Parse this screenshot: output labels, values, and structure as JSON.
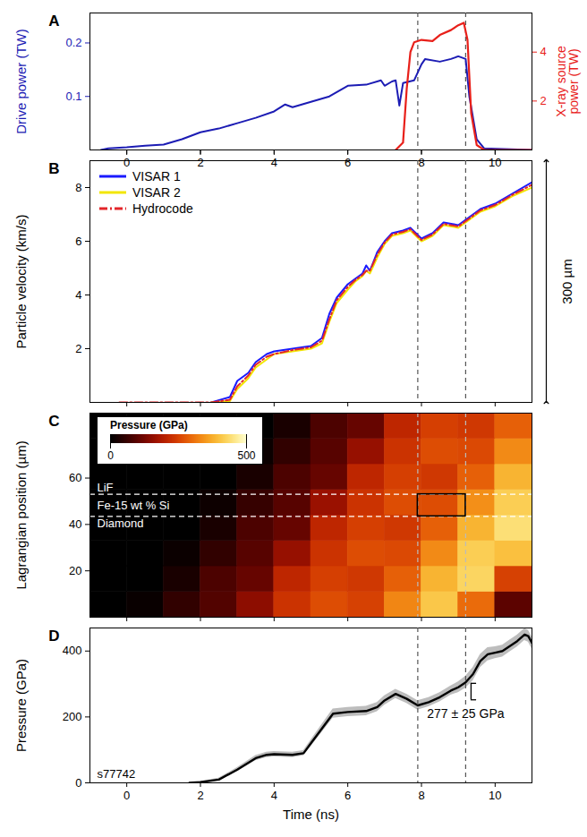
{
  "chart_data": [
    {
      "type": "line",
      "title": "A",
      "xlim": [
        -1,
        11
      ],
      "xticks": [
        0,
        2,
        4,
        6,
        8,
        10
      ],
      "tick_labels": "y",
      "ylim": [
        0,
        0.256
      ],
      "yticks": [
        0.1,
        0.2
      ],
      "y2lim": [
        0,
        5.6
      ],
      "y2ticks": [
        2,
        4
      ],
      "vlines": [
        7.9,
        9.2
      ],
      "series": [
        {
          "name": "Drive power (TW)",
          "color": "#1c1cb4",
          "line_style": "solid",
          "x": [
            -0.7,
            -0.5,
            0,
            0.5,
            1,
            1.5,
            2,
            2.5,
            3,
            3.5,
            4,
            4.3,
            4.5,
            5,
            5.5,
            6,
            6.5,
            6.9,
            7.0,
            7.2,
            7.3,
            7.4,
            7.5,
            7.8,
            8.0,
            8.1,
            8.5,
            8.8,
            9.0,
            9.2,
            9.3,
            9.5,
            9.7,
            11
          ],
          "values": [
            0,
            0.003,
            0.005,
            0.008,
            0.01,
            0.02,
            0.033,
            0.04,
            0.05,
            0.06,
            0.072,
            0.085,
            0.08,
            0.09,
            0.1,
            0.12,
            0.122,
            0.13,
            0.12,
            0.128,
            0.13,
            0.083,
            0.125,
            0.13,
            0.16,
            0.17,
            0.165,
            0.17,
            0.175,
            0.17,
            0.1,
            0.02,
            0.003,
            0
          ]
        },
        {
          "name": "X-ray source power (TW)",
          "color": "#e8201a",
          "axis": "y2",
          "line_style": "solid",
          "x": [
            7.3,
            7.5,
            7.6,
            7.7,
            7.8,
            8.0,
            8.3,
            8.5,
            8.8,
            9.0,
            9.15,
            9.25,
            9.35,
            9.5,
            9.7,
            11
          ],
          "values": [
            0,
            0.3,
            2.5,
            4.0,
            4.4,
            4.5,
            4.45,
            4.7,
            4.9,
            5.1,
            5.2,
            4.5,
            1.5,
            0.2,
            0,
            0
          ]
        }
      ]
    },
    {
      "type": "line",
      "title": "B",
      "ylabel": "Particle velocity (km/s)",
      "xlim": [
        -1,
        11
      ],
      "xticks": [
        0,
        2,
        4,
        6,
        8,
        10
      ],
      "tick_labels": "y",
      "ylim": [
        0,
        9
      ],
      "yticks": [
        2,
        4,
        6,
        8
      ],
      "vlines": [
        7.9,
        9.2
      ],
      "legend": "top-left",
      "annotations": [
        {
          "text": "300 µm"
        }
      ],
      "x": [
        -0.2,
        1,
        2.3,
        2.8,
        3.0,
        3.3,
        3.5,
        3.8,
        4.0,
        4.5,
        5.0,
        5.3,
        5.5,
        5.7,
        6.0,
        6.2,
        6.4,
        6.5,
        6.6,
        6.8,
        7.0,
        7.2,
        7.5,
        7.7,
        8.0,
        8.3,
        8.6,
        9.0,
        9.3,
        9.6,
        10.0,
        10.5,
        11.0
      ],
      "series": [
        {
          "name": "VISAR 1",
          "color": "#1a1aff",
          "line_style": "solid",
          "values": [
            null,
            null,
            0,
            0.2,
            0.8,
            1.1,
            1.5,
            1.8,
            1.9,
            2.0,
            2.1,
            2.4,
            3.3,
            3.9,
            4.4,
            4.6,
            4.8,
            5.1,
            4.9,
            5.6,
            6.0,
            6.3,
            6.4,
            6.5,
            6.1,
            6.3,
            6.7,
            6.6,
            6.9,
            7.2,
            7.4,
            7.8,
            8.2
          ]
        },
        {
          "name": "VISAR 2",
          "color": "#f2e600",
          "line_style": "solid",
          "values": [
            null,
            null,
            0,
            0.05,
            0.5,
            0.9,
            1.3,
            1.6,
            1.8,
            1.9,
            2.0,
            2.2,
            3.0,
            3.7,
            4.2,
            4.5,
            4.7,
            4.9,
            4.8,
            5.4,
            5.9,
            6.2,
            6.3,
            6.4,
            6.0,
            6.2,
            6.6,
            6.5,
            6.8,
            7.1,
            7.3,
            7.7,
            8.0
          ]
        },
        {
          "name": "Hydrocode",
          "color": "#e3262a",
          "line_style": "dashdot",
          "values": [
            0,
            0,
            0,
            0.1,
            0.6,
            1.0,
            1.4,
            1.7,
            1.8,
            1.95,
            2.05,
            2.3,
            3.1,
            3.8,
            4.3,
            4.55,
            4.75,
            4.9,
            4.9,
            5.5,
            5.95,
            6.25,
            6.35,
            6.45,
            6.05,
            6.25,
            6.65,
            6.55,
            6.85,
            7.15,
            7.35,
            7.75,
            8.1
          ]
        }
      ]
    },
    {
      "type": "heatmap",
      "title": "C",
      "ylabel": "Lagrangian position (µm)",
      "xlim": [
        -1,
        11
      ],
      "xticks": [
        0,
        2,
        4,
        6,
        8,
        10
      ],
      "tick_labels": "y",
      "ylim": [
        0,
        88
      ],
      "yticks": [
        20,
        40,
        60
      ],
      "vlines": [
        7.9,
        9.2
      ],
      "x_edges": [
        -1,
        0,
        1,
        2,
        3,
        4,
        5,
        6,
        7,
        8,
        9,
        10,
        11
      ],
      "y_edges": [
        0,
        11,
        22,
        33,
        44,
        55,
        66,
        77,
        88
      ],
      "values": [
        [
          0,
          10,
          55,
          90,
          150,
          230,
          265,
          250,
          330,
          410,
          300,
          100
        ],
        [
          0,
          0,
          28,
          83,
          110,
          210,
          248,
          237,
          288,
          385,
          430,
          250
        ],
        [
          0,
          0,
          12,
          55,
          95,
          160,
          230,
          265,
          260,
          335,
          420,
          400
        ],
        [
          0,
          0,
          0,
          28,
          83,
          110,
          210,
          248,
          237,
          288,
          385,
          445
        ],
        [
          0,
          0,
          0,
          15,
          60,
          95,
          165,
          230,
          265,
          265,
          340,
          420
        ],
        [
          0,
          0,
          0,
          0,
          28,
          83,
          110,
          210,
          248,
          237,
          288,
          385
        ],
        [
          0,
          0,
          0,
          0,
          12,
          55,
          95,
          160,
          230,
          265,
          260,
          335
        ],
        [
          0,
          0,
          0,
          0,
          0,
          28,
          83,
          110,
          210,
          248,
          237,
          288
        ]
      ],
      "colorbar": {
        "label": "Pressure (GPa)",
        "range": [
          0,
          500
        ],
        "ticks": [
          0,
          500
        ]
      },
      "layers": [
        "Diamond",
        "Fe-15 wt % Si",
        "LiF"
      ],
      "boundaries": [
        43.5,
        53
      ],
      "box": {
        "x": [
          7.9,
          9.2
        ],
        "y": [
          43.5,
          53
        ]
      }
    },
    {
      "type": "line",
      "title": "D",
      "xlabel": "Time (ns)",
      "ylabel": "Pressure (GPa)",
      "xlim": [
        -1,
        11
      ],
      "xticks": [
        0,
        2,
        4,
        6,
        8,
        10
      ],
      "ylim": [
        0,
        470
      ],
      "yticks": [
        0,
        200,
        400
      ],
      "vlines": [
        7.9,
        9.2
      ],
      "x": [
        1.7,
        2,
        2.5,
        3,
        3.5,
        3.8,
        4,
        4.5,
        4.8,
        5,
        5.3,
        5.6,
        6,
        6.5,
        6.8,
        7,
        7.3,
        7.6,
        7.9,
        8.2,
        8.5,
        8.8,
        9.0,
        9.2,
        9.4,
        9.6,
        9.8,
        10.0,
        10.2,
        10.4,
        10.6,
        10.8,
        10.9,
        11.0
      ],
      "series": [
        {
          "name": "s77742",
          "color": "#000000",
          "line_style": "solid",
          "values": [
            0,
            2,
            10,
            40,
            75,
            85,
            87,
            85,
            90,
            120,
            165,
            210,
            215,
            218,
            230,
            250,
            270,
            255,
            235,
            245,
            260,
            280,
            290,
            305,
            330,
            370,
            390,
            395,
            400,
            415,
            430,
            450,
            445,
            425
          ],
          "error": [
            0,
            2,
            4,
            6,
            8,
            8,
            8,
            8,
            8,
            10,
            12,
            14,
            14,
            14,
            14,
            14,
            14,
            14,
            14,
            14,
            14,
            14,
            16,
            18,
            20,
            20,
            20,
            18,
            18,
            18,
            18,
            18,
            18,
            18
          ]
        }
      ],
      "annotations": [
        {
          "text": "277 ± 25 GPa",
          "x": 9.2,
          "value": 277,
          "error": 25
        }
      ]
    }
  ]
}
